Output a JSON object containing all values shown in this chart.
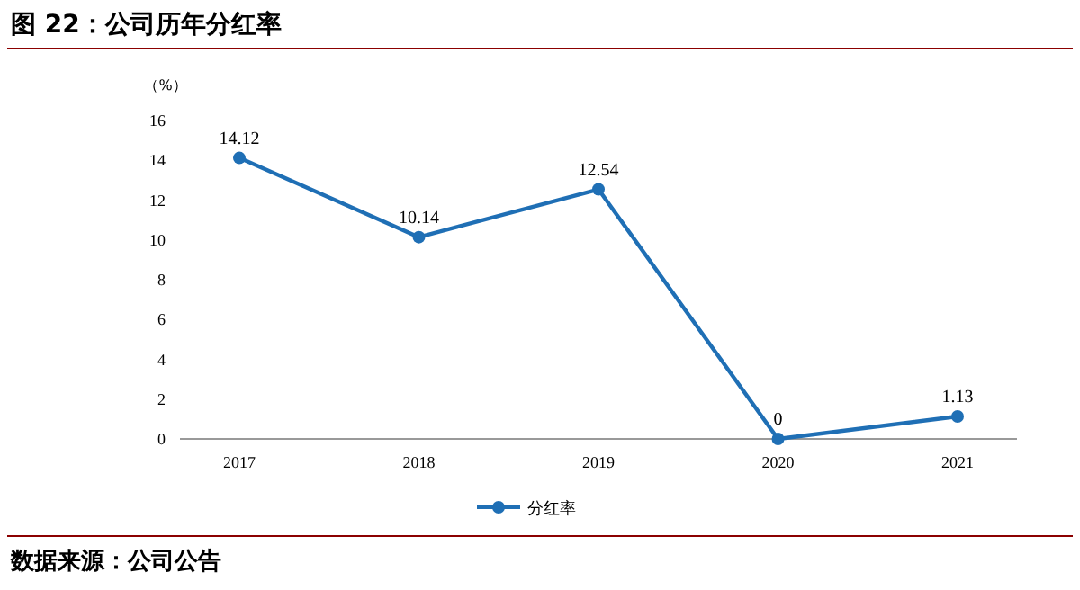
{
  "chart_data": {
    "type": "line",
    "title": "图 22：公司历年分红率",
    "ylabel": "（%）",
    "categories": [
      "2017",
      "2018",
      "2019",
      "2020",
      "2021"
    ],
    "series": [
      {
        "name": "分红率",
        "color": "#1f6fb5",
        "values": [
          14.12,
          10.14,
          12.54,
          0,
          1.13
        ]
      }
    ],
    "ylim": [
      0,
      16
    ],
    "yticks": [
      0,
      2,
      4,
      6,
      8,
      10,
      12,
      14,
      16
    ],
    "data_labels": true,
    "marker": "circle",
    "legend": "bottom",
    "grid": false,
    "annotations": [
      "数据来源：公司公告"
    ]
  }
}
